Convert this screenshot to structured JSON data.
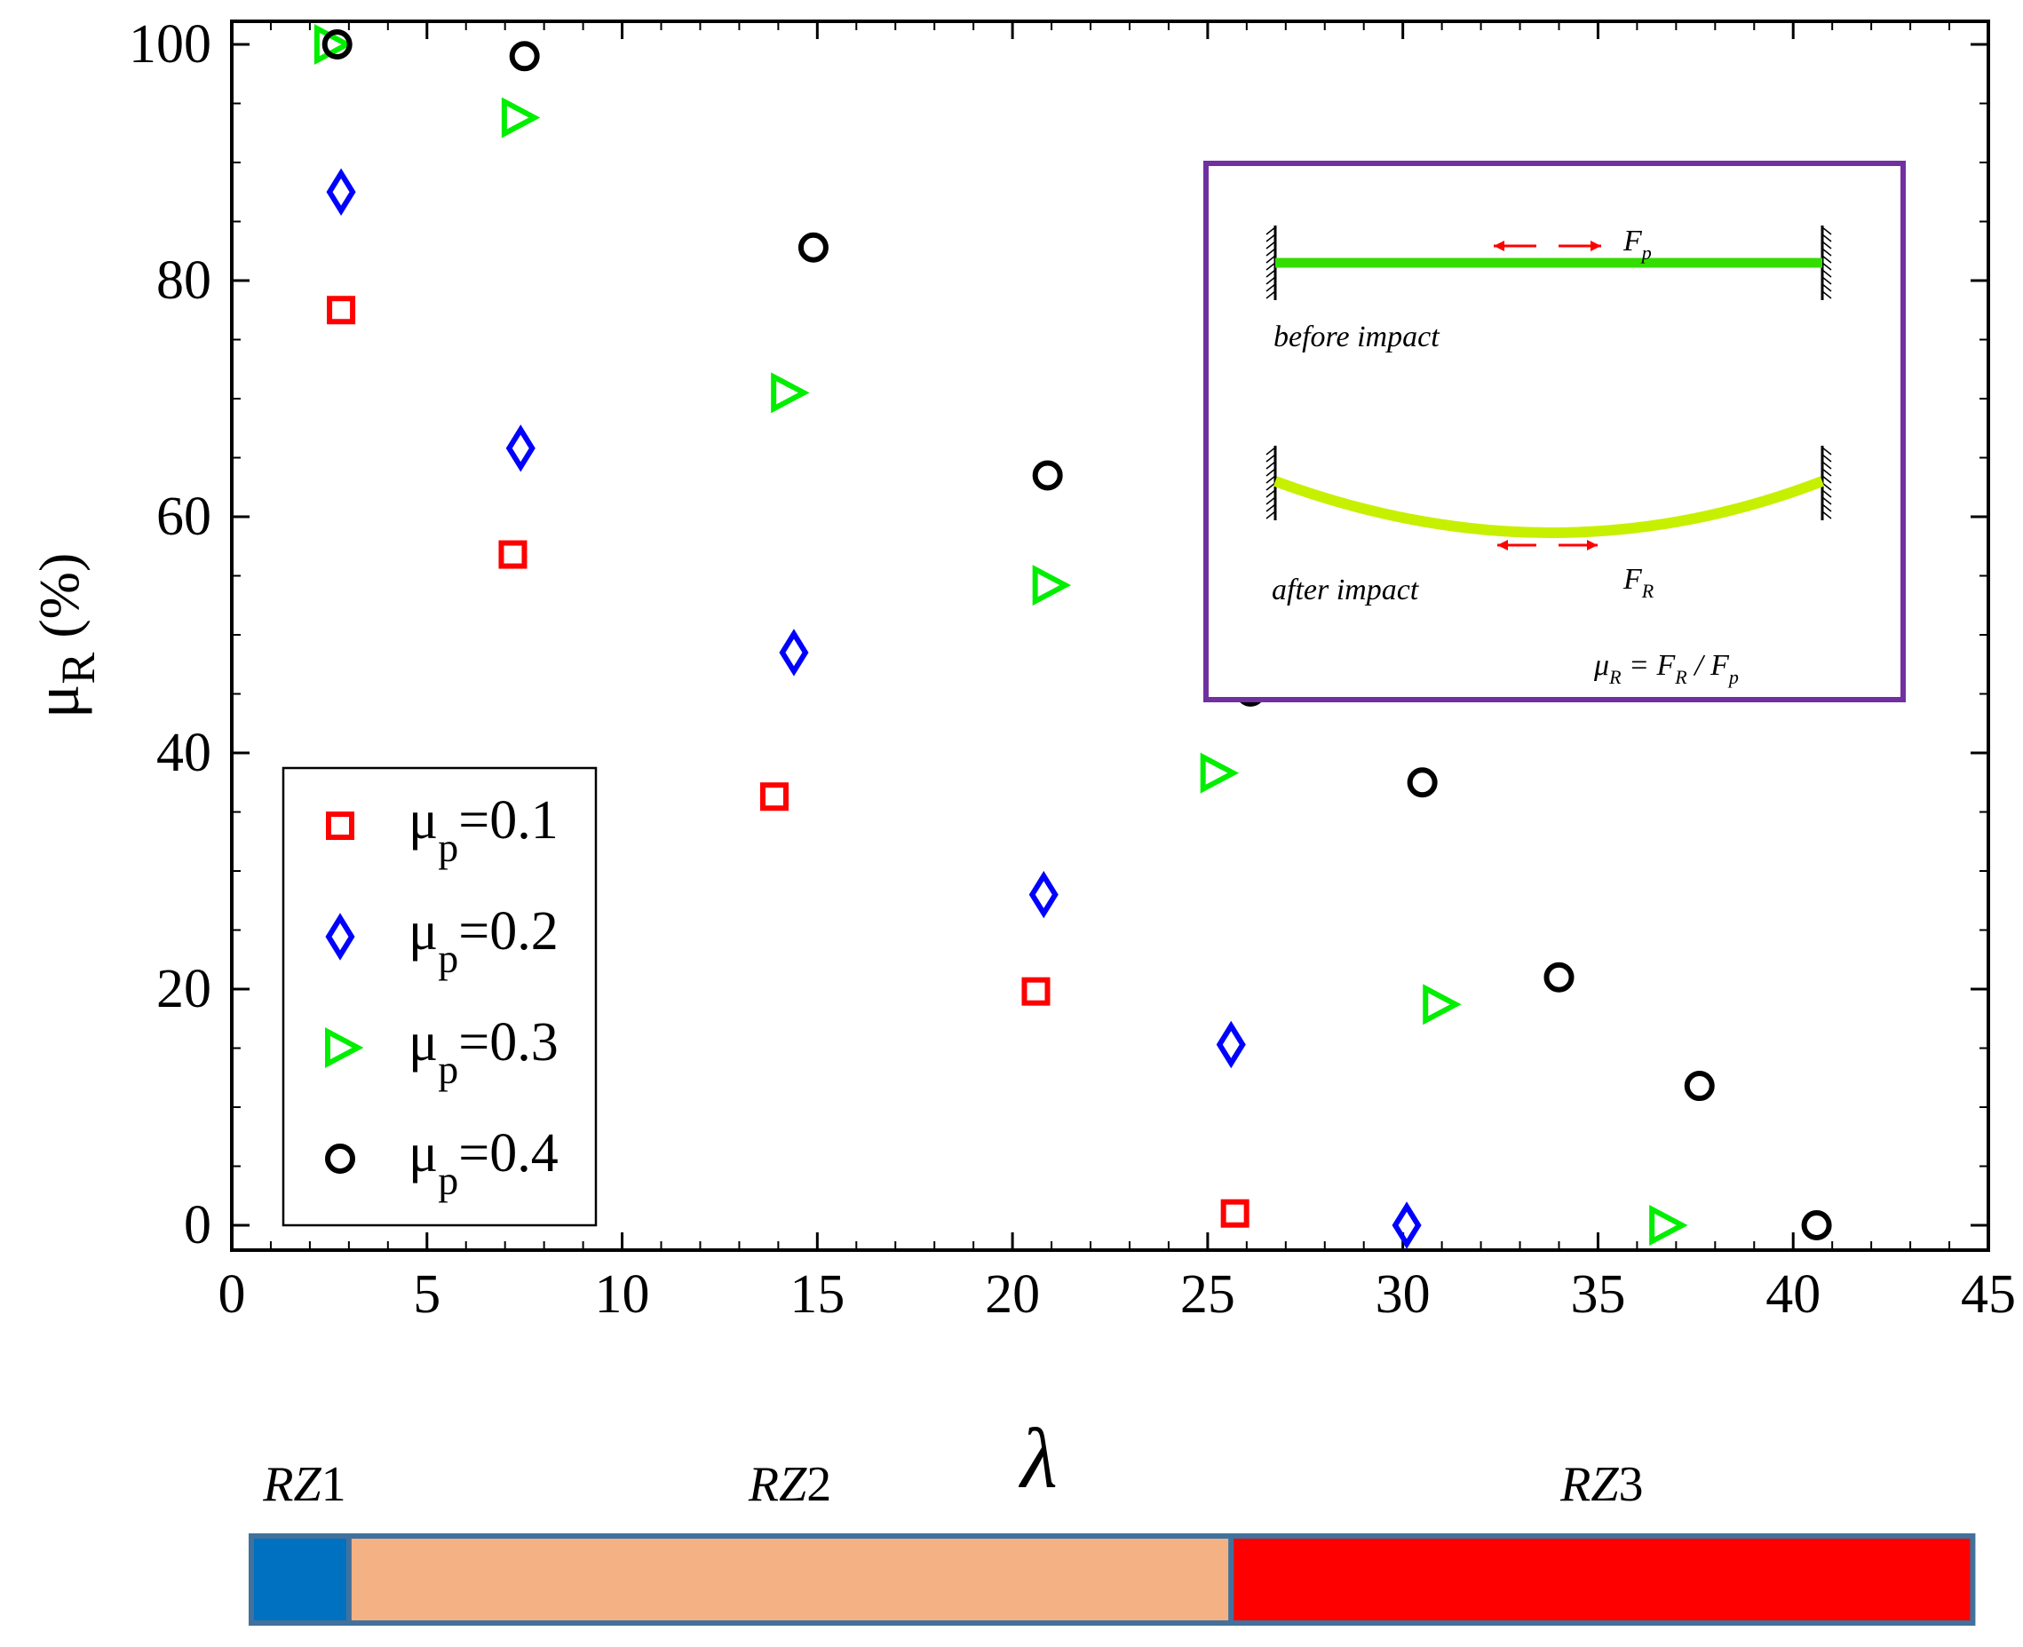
{
  "chart_data": {
    "type": "scatter",
    "xlabel": "λ",
    "ylabel": "μ",
    "ylabel_sub": "R",
    "ylabel_unit": " (%)",
    "xlim": [
      0,
      45
    ],
    "ylim": [
      0,
      100
    ],
    "x_ticks": [
      0,
      5,
      10,
      15,
      20,
      25,
      30,
      35,
      40,
      45
    ],
    "y_ticks": [
      0,
      20,
      40,
      60,
      80,
      100
    ],
    "grid": false,
    "legend_position": "bottom-left",
    "series": [
      {
        "name": "μp=0.1",
        "label_main": "μ",
        "label_sub": "p",
        "label_value": "=0.1",
        "marker": "square",
        "color": "#ff0000",
        "x": [
          2.8,
          7.2,
          13.9,
          20.6,
          25.7
        ],
        "y": [
          77.5,
          56.8,
          36.3,
          19.8,
          1.0
        ]
      },
      {
        "name": "μp=0.2",
        "label_main": "μ",
        "label_sub": "p",
        "label_value": "=0.2",
        "marker": "diamond",
        "color": "#0000ff",
        "x": [
          2.8,
          7.4,
          14.4,
          20.8,
          25.6,
          30.1
        ],
        "y": [
          87.5,
          65.8,
          48.5,
          28.0,
          15.3,
          0.0
        ]
      },
      {
        "name": "μp=0.3",
        "label_main": "μ",
        "label_sub": "p",
        "label_value": "=0.3",
        "marker": "triangle-right",
        "color": "#00ee00",
        "x": [
          2.5,
          7.3,
          14.2,
          20.9,
          25.2,
          30.9,
          36.7
        ],
        "y": [
          100,
          93.8,
          70.5,
          54.2,
          38.3,
          18.7,
          0.0
        ]
      },
      {
        "name": "μp=0.4",
        "label_main": "μ",
        "label_sub": "p",
        "label_value": "=0.4",
        "marker": "circle",
        "color": "#000000",
        "x": [
          2.7,
          7.5,
          14.9,
          20.9,
          26.1,
          30.5,
          34.0,
          37.6,
          40.6
        ],
        "y": [
          100,
          99.0,
          82.8,
          63.5,
          45.2,
          37.5,
          21.0,
          11.8,
          0.0
        ]
      }
    ],
    "inset": {
      "before_label": "before impact",
      "after_label": "after impact",
      "force_before_main": "F",
      "force_before_sub": "p",
      "force_after_main": "F",
      "force_after_sub": "R",
      "formula_mu": "μ",
      "formula_mu_sub": "R",
      "formula_eq": " = F",
      "formula_fr_sub": "R",
      "formula_div": " / F",
      "formula_fp_sub": "p",
      "border_color": "#7030a0",
      "beam_before_color": "#33dd00",
      "beam_after_color": "#c6f000",
      "arrow_color": "#ff0000"
    },
    "zones": [
      {
        "label_main": "RZ",
        "label_num": "1",
        "x_start": 0.5,
        "x_end": 3.0,
        "color": "#0070c0"
      },
      {
        "label_main": "RZ",
        "label_num": "2",
        "x_start": 3.0,
        "x_end": 25.6,
        "color": "#f4b183"
      },
      {
        "label_main": "RZ",
        "label_num": "3",
        "x_start": 25.6,
        "x_end": 44.6,
        "color": "#ff0000"
      }
    ],
    "zone_border_color": "#41719c"
  }
}
